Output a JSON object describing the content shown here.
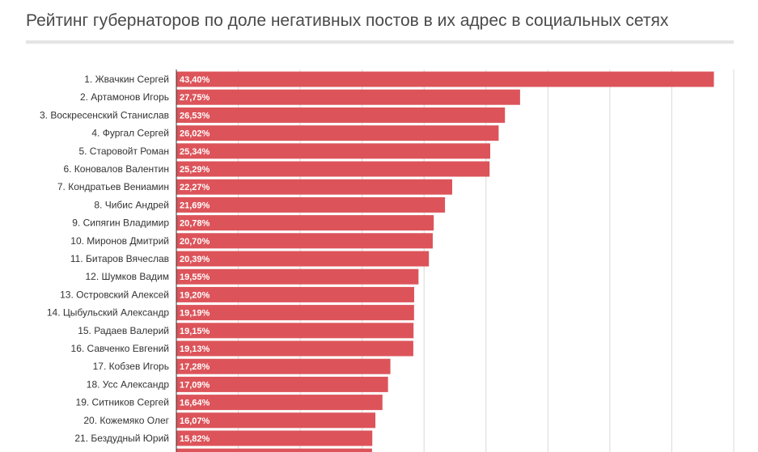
{
  "title": "Рейтинг губернаторов по доле негативных постов в их адрес в социальных сетях",
  "colors": {
    "bar": "#dc545a",
    "gridline": "#d9d9d9",
    "axis": "#333333",
    "title_rule": "#e4e4e4"
  },
  "chart_data": {
    "type": "bar",
    "orientation": "horizontal",
    "title": "Рейтинг губернаторов по доле негативных постов в их адрес в социальных сетях",
    "xlabel": "",
    "ylabel": "",
    "xlim": [
      0,
      45
    ],
    "grid": true,
    "categories": [
      "1. Жвачкин Сергей",
      "2. Артамонов Игорь",
      "3. Воскресенский Станислав",
      "4. Фургал Сергей",
      "5. Старовойт Роман",
      "6. Коновалов Валентин",
      "7. Кондратьев Вениамин",
      "8. Чибис Андрей",
      "9. Сипягин Владимир",
      "10. Миронов Дмитрий",
      "11. Битаров Вячеслав",
      "12. Шумков Вадим",
      "13. Островский Алексей",
      "14. Цыбульский Александр",
      "15. Радаев Валерий",
      "16. Савченко Евгений",
      "17. Кобзев Игорь",
      "18. Усс Александр",
      "19. Ситников Сергей",
      "20. Кожемяко Олег",
      "21. Бездудный Юрий"
    ],
    "values": [
      43.4,
      27.75,
      26.53,
      26.02,
      25.34,
      25.29,
      22.27,
      21.69,
      20.78,
      20.7,
      20.39,
      19.55,
      19.2,
      19.19,
      19.15,
      19.13,
      17.28,
      17.09,
      16.64,
      16.07,
      15.82
    ],
    "value_labels": [
      "43,40%",
      "27,75%",
      "26,53%",
      "26,02%",
      "25,34%",
      "25,29%",
      "22,27%",
      "21,69%",
      "20,78%",
      "20,70%",
      "20,39%",
      "19,55%",
      "19,20%",
      "19,19%",
      "19,15%",
      "19,13%",
      "17,28%",
      "17,09%",
      "16,64%",
      "16,07%",
      "15,82%"
    ],
    "partial_next_value": 15.8
  }
}
